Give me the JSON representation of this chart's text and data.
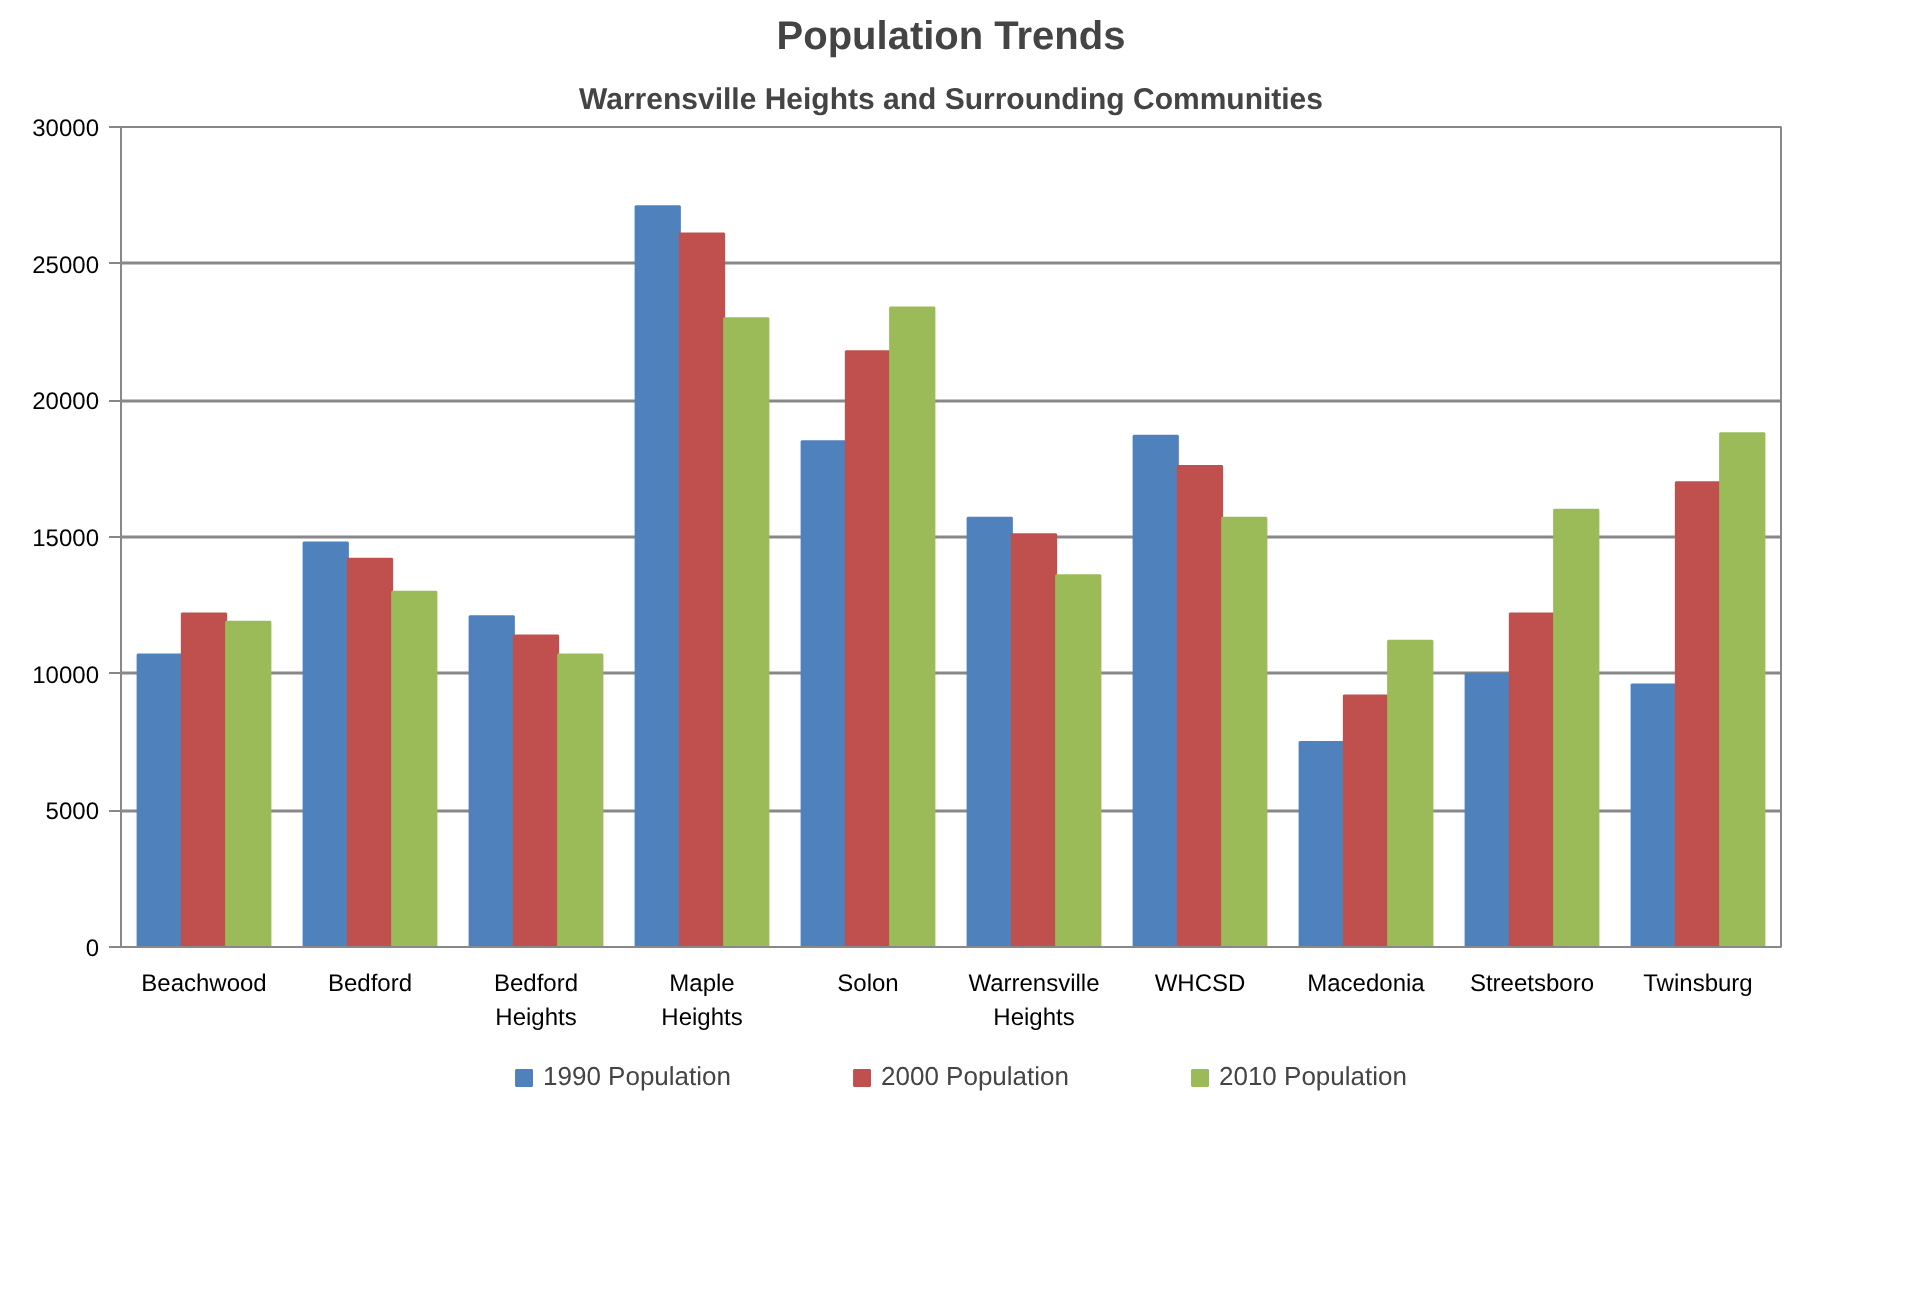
{
  "chart_data": {
    "type": "bar",
    "title": "Population Trends",
    "subtitle": "Warrensville Heights and Surrounding Communities",
    "categories": [
      "Beachwood",
      "Bedford",
      "Bedford Heights",
      "Maple Heights",
      "Solon",
      "Warrensville Heights",
      "WHCSD",
      "Macedonia",
      "Streetsboro",
      "Twinsburg"
    ],
    "series": [
      {
        "name": "1990 Population",
        "color": "#4f81bd",
        "values": [
          10700,
          14800,
          12100,
          27100,
          18500,
          15700,
          18700,
          7500,
          10000,
          9600
        ]
      },
      {
        "name": "2000 Population",
        "color": "#c0504d",
        "values": [
          12200,
          14200,
          11400,
          26100,
          21800,
          15100,
          17600,
          9200,
          12200,
          17000
        ]
      },
      {
        "name": "2010 Population",
        "color": "#9bbb59",
        "values": [
          11900,
          13000,
          10700,
          23000,
          23400,
          13600,
          15700,
          11200,
          16000,
          18800
        ]
      }
    ],
    "ylim": [
      0,
      30000
    ],
    "yticks": [
      0,
      5000,
      10000,
      15000,
      20000,
      25000,
      30000
    ],
    "grid": "y",
    "legend": "bottom"
  }
}
